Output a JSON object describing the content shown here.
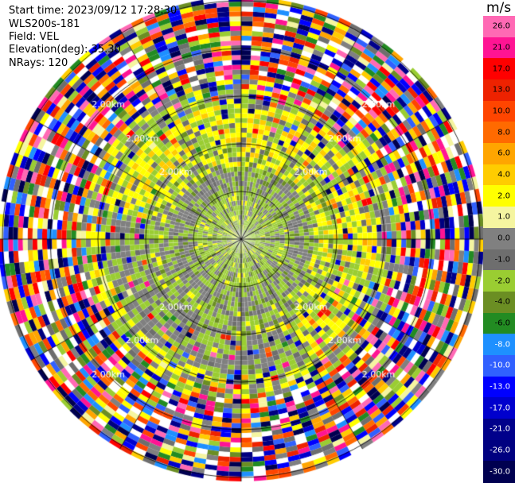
{
  "header": {
    "start_time": "Start time: 2023/09/12 17:28:30",
    "instrument": "WLS200s-181",
    "field": "Field: VEL",
    "elevation": "Elevation(deg): 35.30",
    "nrays": "NRays: 120"
  },
  "colorbar": {
    "title": "m/s",
    "levels": [
      {
        "label": "26.0",
        "color": "#ff69b4"
      },
      {
        "label": "21.0",
        "color": "#ff1493"
      },
      {
        "label": "17.0",
        "color": "#ff0000"
      },
      {
        "label": "13.0",
        "color": "#ee2200"
      },
      {
        "label": "10.0",
        "color": "#ff4500"
      },
      {
        "label": "8.0",
        "color": "#ff6a00"
      },
      {
        "label": "6.0",
        "color": "#ffa500"
      },
      {
        "label": "4.0",
        "color": "#ffcc00"
      },
      {
        "label": "2.0",
        "color": "#ffff00"
      },
      {
        "label": "1.0",
        "color": "#f5f5a0"
      },
      {
        "label": "0.0",
        "color": "#808080"
      },
      {
        "label": "-1.0",
        "color": "#6e6e6e"
      },
      {
        "label": "-2.0",
        "color": "#9acd32"
      },
      {
        "label": "-4.0",
        "color": "#6b8e23"
      },
      {
        "label": "-6.0",
        "color": "#228b22"
      },
      {
        "label": "-8.0",
        "color": "#1e90ff"
      },
      {
        "label": "-10.0",
        "color": "#3060ff"
      },
      {
        "label": "-13.0",
        "color": "#0000ff"
      },
      {
        "label": "-17.0",
        "color": "#0000cd"
      },
      {
        "label": "-21.0",
        "color": "#00008b"
      },
      {
        "label": "-26.0",
        "color": "#000080"
      },
      {
        "label": "-30.0",
        "color": "#000050"
      }
    ]
  },
  "chart_data": {
    "type": "heatmap",
    "projection": "polar PPI",
    "field": "VEL",
    "units": "m/s",
    "nrays": 120,
    "range_ring_labels": [
      "2.00km",
      "2.00km",
      "2.00km",
      "2.00km",
      "2.00km",
      "2.00km"
    ],
    "ring_label_positions": [
      "north-west",
      "north-east",
      "south-west",
      "south-east"
    ],
    "pattern": {
      "inner_zone": "mixed gray and light green (-2 to 0 m/s)",
      "yellow_arc": "curving band of 2 to 4 m/s on north and east sides",
      "outer_zone": "noisy all-color speckle at far ranges"
    },
    "colorbar_ticks": [
      26.0,
      21.0,
      17.0,
      13.0,
      10.0,
      8.0,
      6.0,
      4.0,
      2.0,
      1.0,
      0.0,
      -1.0,
      -2.0,
      -4.0,
      -6.0,
      -8.0,
      -10.0,
      -13.0,
      -17.0,
      -21.0,
      -26.0,
      -30.0
    ],
    "vmin": -30.0,
    "vmax": 30.0
  }
}
